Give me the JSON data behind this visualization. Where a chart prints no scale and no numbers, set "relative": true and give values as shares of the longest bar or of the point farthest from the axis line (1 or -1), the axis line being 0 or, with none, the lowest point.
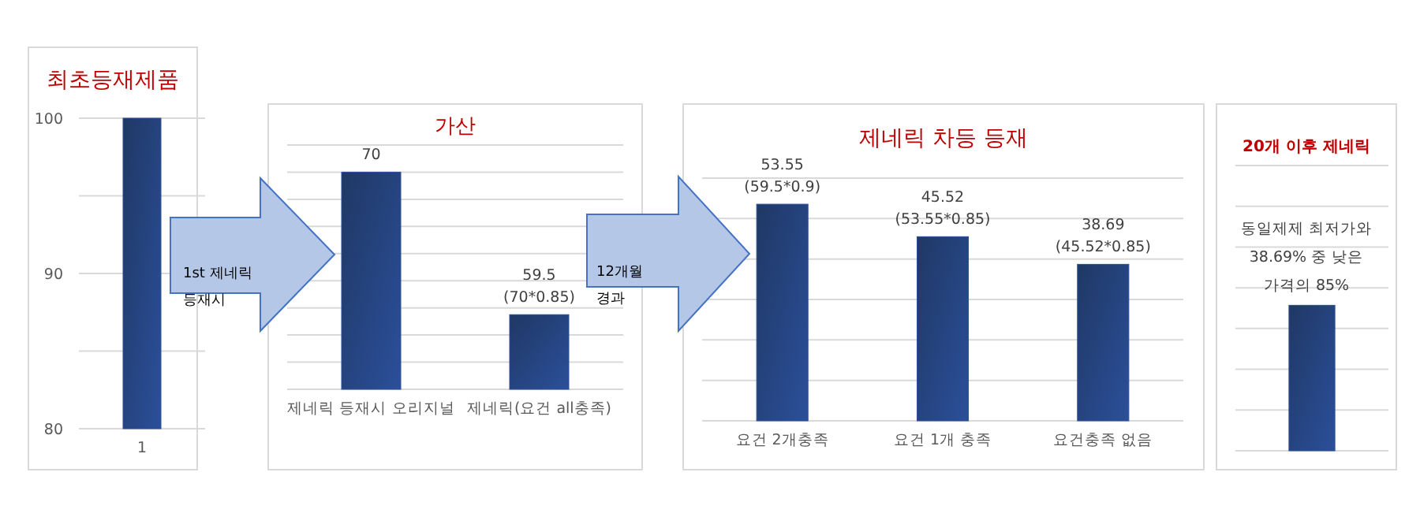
{
  "chart_data": [
    {
      "type": "bar",
      "title": "최초등재제품",
      "categories": [
        "1"
      ],
      "values": [
        100
      ],
      "color": "#2b4f9a",
      "ylim": [
        80,
        100
      ],
      "yticks": [
        80,
        {
          "value": 85,
          "label": null
        },
        90,
        {
          "value": 95,
          "label": null
        },
        100
      ],
      "grid": "y"
    },
    {
      "type": "bar",
      "title": "가산",
      "categories": [
        "제네릭 등재시 오리지널",
        "제네릭(요건 all충족)"
      ],
      "values": [
        70,
        59.5
      ],
      "value_labels": [
        "70",
        "59.5\n(70*0.85)"
      ],
      "color": "#2b4f9a",
      "ylim": [
        54,
        72
      ],
      "yticks": [
        {
          "value": 54,
          "label": null
        },
        {
          "value": 56,
          "label": null
        },
        {
          "value": 58,
          "label": null
        },
        {
          "value": 60,
          "label": null
        },
        {
          "value": 62,
          "label": null
        },
        {
          "value": 64,
          "label": null
        },
        {
          "value": 66,
          "label": null
        },
        {
          "value": 68,
          "label": null
        },
        {
          "value": 70,
          "label": null
        },
        {
          "value": 72,
          "label": null
        }
      ],
      "grid": "y",
      "annotations": [
        "1st 제네릭\n등재시"
      ]
    },
    {
      "type": "bar",
      "title": "제네릭 차등 등재",
      "categories": [
        "요건 2개충족",
        "요건 1개 충족",
        "요건충족 없음"
      ],
      "values": [
        53.55,
        45.52,
        38.69
      ],
      "value_labels": [
        "53.55\n(59.5*0.9)",
        "45.52\n(53.55*0.85)",
        "38.69\n(45.52*0.85)"
      ],
      "color": "#2b4f9a",
      "ylim": [
        0,
        60
      ],
      "yticks": [
        {
          "value": 0,
          "label": null
        },
        {
          "value": 10,
          "label": null
        },
        {
          "value": 20,
          "label": null
        },
        {
          "value": 30,
          "label": null
        },
        {
          "value": 40,
          "label": null
        },
        {
          "value": 50,
          "label": null
        },
        {
          "value": 60,
          "label": null
        }
      ],
      "grid": "y",
      "annotations": [
        "12개월\n경과"
      ]
    },
    {
      "type": "bar",
      "title": "20개 이후 제네릭",
      "categories": [
        null
      ],
      "values": [
        1
      ],
      "relative": true,
      "color": "#2b4f9a",
      "grid": "y",
      "annotations": [
        "동일제제 최저가와\n38.69% 중 낮은\n가격의 85%"
      ]
    }
  ]
}
